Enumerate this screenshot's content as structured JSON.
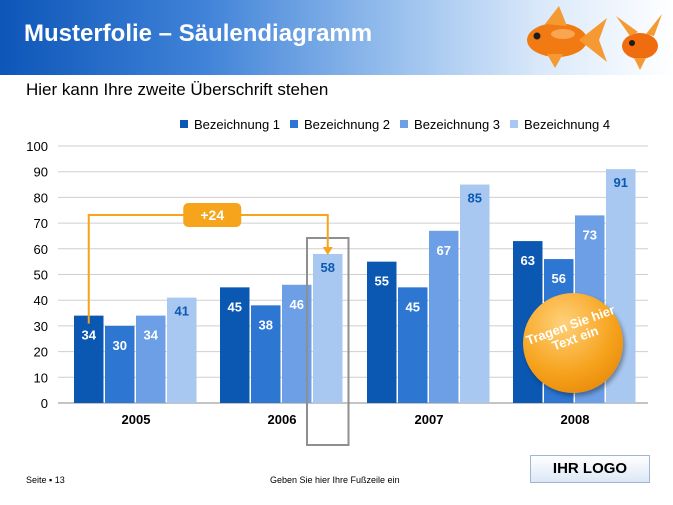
{
  "header": {
    "title": "Musterfolie – Säulendiagramm"
  },
  "subtitle": "Hier kann Ihre zweite Überschrift stehen",
  "chart_data": {
    "type": "bar",
    "categories": [
      "2005",
      "2006",
      "2007",
      "2008"
    ],
    "series": [
      {
        "name": "Bezeichnung 1",
        "values": [
          34,
          45,
          55,
          63
        ],
        "color": "#0b58b2"
      },
      {
        "name": "Bezeichnung 2",
        "values": [
          30,
          38,
          45,
          56
        ],
        "color": "#2d76d2"
      },
      {
        "name": "Bezeichnung 3",
        "values": [
          34,
          46,
          67,
          73
        ],
        "color": "#6d9fe6"
      },
      {
        "name": "Bezeichnung 4",
        "values": [
          41,
          58,
          85,
          91
        ],
        "color": "#a8c8f1"
      }
    ],
    "yticks": [
      0,
      10,
      20,
      30,
      40,
      50,
      60,
      70,
      80,
      90,
      100
    ],
    "ylim": [
      0,
      100
    ],
    "legend_position": "top-right",
    "grid": true,
    "annotation": {
      "label": "+24",
      "from": "Bezeichnung 1 / 2005",
      "to": "Bezeichnung 4 / 2006",
      "color": "#f5a41b"
    },
    "highlight": "Bezeichnung 4 / 2006"
  },
  "bubble": {
    "text": "Tragen Sie hier Text ein"
  },
  "footer": {
    "page": "Seite ▪ 13",
    "center": "Geben Sie hier Ihre Fußzeile ein"
  },
  "logo": "IHR LOGO"
}
